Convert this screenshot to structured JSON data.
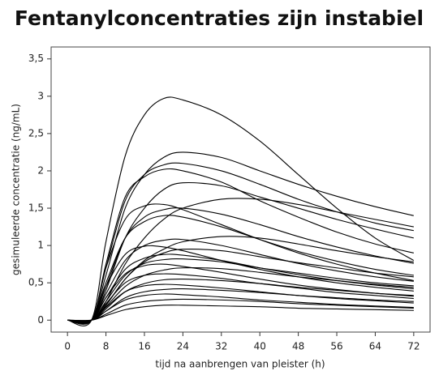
{
  "chart_data": {
    "type": "line",
    "title": "Fentanylconcentraties zijn instabiel",
    "x_label": "tijd na aanbrengen van pleister (h)",
    "y_label": "gesimuleerde concentratie (ng/mL)",
    "x": [
      0,
      5,
      8,
      12,
      16,
      20,
      24,
      32,
      40,
      48,
      56,
      64,
      72
    ],
    "xlim": [
      -3.4,
      75.4
    ],
    "ylim": [
      -0.16,
      3.66
    ],
    "xticks": [
      0,
      8,
      16,
      24,
      32,
      40,
      48,
      56,
      64,
      72
    ],
    "yticks": [
      0,
      {
        "value": 0.5,
        "label": "0,5"
      },
      1,
      {
        "value": 1.5,
        "label": "1,5"
      },
      2,
      {
        "value": 2.5,
        "label": "2,5"
      },
      3,
      {
        "value": 3.5,
        "label": "3,5"
      }
    ],
    "grid": false,
    "series": [
      {
        "color": "#000000",
        "values": [
          0,
          0,
          1.05,
          2.2,
          2.75,
          2.97,
          2.95,
          2.75,
          2.4,
          1.95,
          1.5,
          1.1,
          0.8
        ]
      },
      {
        "color": "#000000",
        "values": [
          0,
          0,
          0.6,
          1.5,
          1.95,
          2.18,
          2.25,
          2.18,
          2.0,
          1.82,
          1.66,
          1.52,
          1.4
        ]
      },
      {
        "color": "#000000",
        "values": [
          0,
          0,
          0.7,
          1.6,
          1.95,
          2.08,
          2.1,
          2.0,
          1.82,
          1.62,
          1.45,
          1.3,
          1.2
        ]
      },
      {
        "color": "#000000",
        "values": [
          0,
          0,
          0.75,
          1.65,
          1.92,
          2.02,
          2.0,
          1.85,
          1.6,
          1.38,
          1.18,
          1.02,
          0.9
        ]
      },
      {
        "color": "#000000",
        "values": [
          0,
          0,
          0.4,
          1.1,
          1.5,
          1.75,
          1.84,
          1.8,
          1.65,
          1.5,
          1.35,
          1.22,
          1.1
        ]
      },
      {
        "color": "#000000",
        "values": [
          0,
          0,
          0.25,
          0.75,
          1.1,
          1.35,
          1.5,
          1.62,
          1.62,
          1.55,
          1.45,
          1.35,
          1.25
        ]
      },
      {
        "color": "#000000",
        "values": [
          0,
          0,
          0.7,
          1.35,
          1.53,
          1.55,
          1.48,
          1.28,
          1.08,
          0.9,
          0.75,
          0.63,
          0.53
        ]
      },
      {
        "color": "#000000",
        "values": [
          0,
          0,
          0.45,
          1.1,
          1.38,
          1.48,
          1.5,
          1.42,
          1.28,
          1.12,
          0.98,
          0.86,
          0.76
        ]
      },
      {
        "color": "#000000",
        "values": [
          0,
          0,
          0.5,
          1.1,
          1.32,
          1.4,
          1.38,
          1.25,
          1.08,
          0.92,
          0.79,
          0.68,
          0.6
        ]
      },
      {
        "color": "#000000",
        "values": [
          0,
          0,
          0.2,
          0.55,
          0.8,
          0.95,
          1.05,
          1.12,
          1.1,
          1.02,
          0.93,
          0.85,
          0.78
        ]
      },
      {
        "color": "#000000",
        "values": [
          0,
          0,
          0.35,
          0.8,
          1.0,
          1.07,
          1.08,
          1.0,
          0.88,
          0.76,
          0.66,
          0.58,
          0.52
        ]
      },
      {
        "color": "#000000",
        "values": [
          0,
          0,
          0.45,
          0.88,
          0.99,
          0.98,
          0.93,
          0.8,
          0.68,
          0.58,
          0.5,
          0.44,
          0.39
        ]
      },
      {
        "color": "#000000",
        "values": [
          0,
          0,
          0.2,
          0.55,
          0.78,
          0.9,
          0.95,
          0.93,
          0.85,
          0.77,
          0.7,
          0.63,
          0.58
        ]
      },
      {
        "color": "#000000",
        "values": [
          0,
          0,
          0.3,
          0.68,
          0.83,
          0.88,
          0.87,
          0.8,
          0.7,
          0.61,
          0.53,
          0.47,
          0.42
        ]
      },
      {
        "color": "#000000",
        "values": [
          0,
          0,
          0.25,
          0.6,
          0.76,
          0.81,
          0.82,
          0.78,
          0.7,
          0.63,
          0.56,
          0.5,
          0.46
        ]
      },
      {
        "color": "#000000",
        "values": [
          0,
          0,
          0.3,
          0.62,
          0.73,
          0.75,
          0.72,
          0.64,
          0.55,
          0.47,
          0.41,
          0.36,
          0.32
        ]
      },
      {
        "color": "#000000",
        "values": [
          0,
          0,
          0.18,
          0.45,
          0.6,
          0.67,
          0.7,
          0.69,
          0.64,
          0.58,
          0.53,
          0.48,
          0.44
        ]
      },
      {
        "color": "#000000",
        "values": [
          0,
          0,
          0.22,
          0.5,
          0.6,
          0.62,
          0.61,
          0.56,
          0.49,
          0.43,
          0.37,
          0.33,
          0.29
        ]
      },
      {
        "color": "#000000",
        "values": [
          0,
          0,
          0.15,
          0.38,
          0.49,
          0.54,
          0.55,
          0.53,
          0.49,
          0.44,
          0.4,
          0.36,
          0.33
        ]
      },
      {
        "color": "#000000",
        "values": [
          0,
          0,
          0.17,
          0.38,
          0.46,
          0.48,
          0.47,
          0.43,
          0.38,
          0.33,
          0.29,
          0.26,
          0.23
        ]
      },
      {
        "color": "#000000",
        "values": [
          0,
          0,
          0.12,
          0.3,
          0.38,
          0.41,
          0.42,
          0.4,
          0.37,
          0.33,
          0.3,
          0.27,
          0.25
        ]
      },
      {
        "color": "#000000",
        "values": [
          0,
          0,
          0.12,
          0.27,
          0.33,
          0.35,
          0.34,
          0.31,
          0.27,
          0.24,
          0.21,
          0.19,
          0.17
        ]
      },
      {
        "color": "#000000",
        "values": [
          0,
          0,
          0.08,
          0.2,
          0.25,
          0.27,
          0.28,
          0.27,
          0.25,
          0.22,
          0.2,
          0.18,
          0.16
        ]
      },
      {
        "color": "#000000",
        "values": [
          0,
          0,
          0.06,
          0.14,
          0.18,
          0.2,
          0.2,
          0.19,
          0.18,
          0.16,
          0.15,
          0.14,
          0.13
        ]
      }
    ]
  }
}
